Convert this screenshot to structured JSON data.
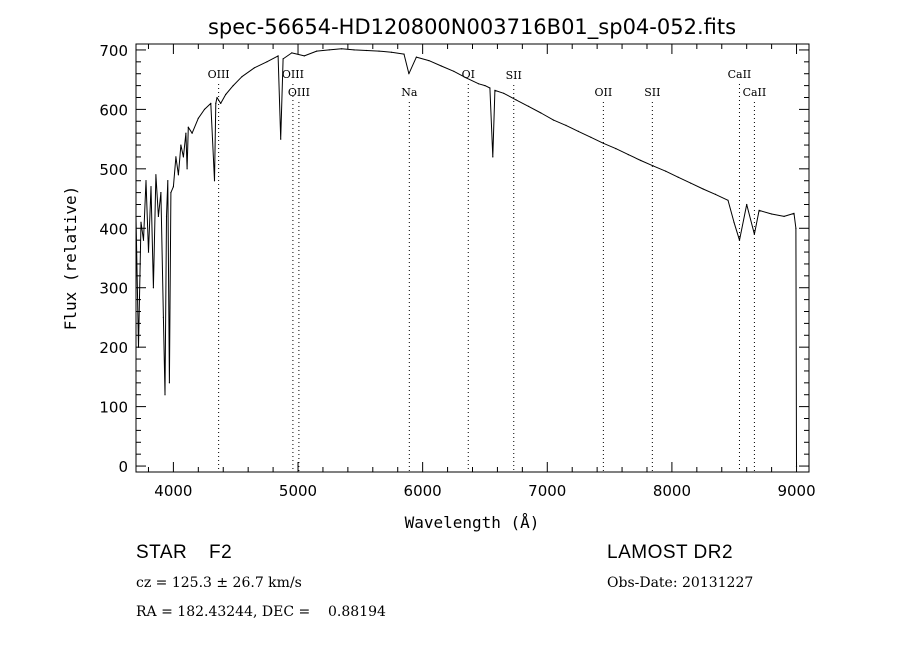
{
  "chart_data": {
    "type": "line",
    "title": "spec-56654-HD120800N003716B01_sp04-052.fits",
    "xlabel": "Wavelength (Å)",
    "ylabel": "Flux (relative)",
    "xlim": [
      3700,
      9100
    ],
    "ylim": [
      -10,
      710
    ],
    "x_ticks": [
      4000,
      5000,
      6000,
      7000,
      8000,
      9000
    ],
    "y_ticks": [
      0,
      100,
      200,
      300,
      400,
      500,
      600,
      700
    ],
    "grid": false,
    "series": [
      {
        "x": [
          3700,
          3720,
          3740,
          3760,
          3780,
          3800,
          3820,
          3840,
          3860,
          3880,
          3900,
          3920,
          3933,
          3945,
          3955,
          3968,
          3980,
          4000,
          4020,
          4040,
          4060,
          4080,
          4100,
          4110,
          4120,
          4150,
          4200,
          4250,
          4300,
          4330,
          4340,
          4350,
          4380,
          4420,
          4480,
          4550,
          4650,
          4750,
          4840,
          4861,
          4880,
          4950,
          5050,
          5150,
          5250,
          5350,
          5450,
          5550,
          5650,
          5750,
          5850,
          5890,
          5950,
          6050,
          6150,
          6250,
          6350,
          6450,
          6500,
          6540,
          6563,
          6580,
          6650,
          6750,
          6850,
          6950,
          7050,
          7150,
          7250,
          7350,
          7450,
          7550,
          7650,
          7750,
          7850,
          7950,
          8050,
          8150,
          8250,
          8350,
          8450,
          8498,
          8542,
          8600,
          8662,
          8700,
          8800,
          8900,
          8980,
          8995,
          9000
        ],
        "y": [
          420,
          200,
          410,
          380,
          480,
          360,
          470,
          300,
          490,
          420,
          460,
          250,
          120,
          420,
          480,
          140,
          460,
          470,
          520,
          490,
          540,
          520,
          560,
          500,
          570,
          560,
          585,
          600,
          610,
          480,
          610,
          620,
          610,
          625,
          640,
          655,
          670,
          680,
          690,
          550,
          685,
          695,
          690,
          698,
          700,
          702,
          700,
          699,
          698,
          696,
          693,
          660,
          688,
          682,
          673,
          664,
          653,
          643,
          640,
          636,
          520,
          632,
          627,
          616,
          605,
          594,
          582,
          573,
          563,
          553,
          543,
          534,
          524,
          514,
          505,
          496,
          486,
          476,
          466,
          457,
          447,
          410,
          380,
          440,
          390,
          430,
          424,
          420,
          425,
          400,
          0
        ],
        "color": "#000000"
      }
    ],
    "line_markers": [
      {
        "label": "OIII",
        "x": 4363,
        "level": "upper"
      },
      {
        "label": "OIII",
        "x": 4959,
        "level": "upper"
      },
      {
        "label": "OIII",
        "x": 5007,
        "level": "lower"
      },
      {
        "label": "Na",
        "x": 5893,
        "level": "lower"
      },
      {
        "label": "OI",
        "x": 6366,
        "level": "upper"
      },
      {
        "label": "SII",
        "x": 6731,
        "level": "mid"
      },
      {
        "label": "OII",
        "x": 7450,
        "level": "lower"
      },
      {
        "label": "SII",
        "x": 7843,
        "level": "lower"
      },
      {
        "label": "CaII",
        "x": 8542,
        "level": "upper"
      },
      {
        "label": "CaII",
        "x": 8662,
        "level": "lower"
      }
    ]
  },
  "info": {
    "object": "STAR",
    "subclass": "F2",
    "survey": "LAMOST DR2",
    "cz": "cz = 125.3 ± 26.7 km/s",
    "obs_date": "Obs-Date: 20131227",
    "coords": "RA = 182.43244, DEC =    0.88194"
  }
}
